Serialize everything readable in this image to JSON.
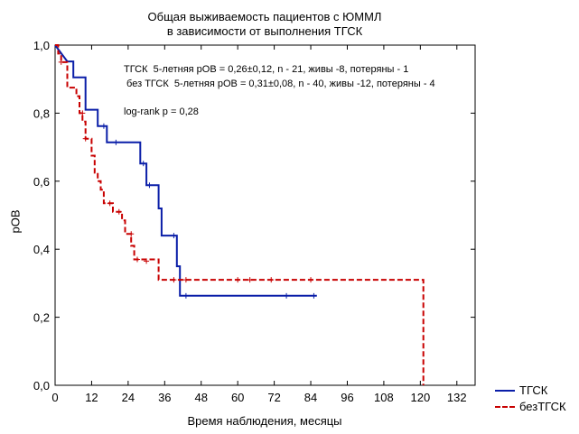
{
  "chart_data": {
    "type": "line",
    "title": "Общая выживаемость пациентов с ЮММЛ",
    "subtitle": "в зависимости от выполнения ТГСК",
    "xlabel": "Время наблюдения, месяцы",
    "ylabel": "pOB",
    "xlim": [
      0,
      138
    ],
    "ylim": [
      0,
      1.0
    ],
    "xticks": [
      0,
      12,
      24,
      36,
      48,
      60,
      72,
      84,
      96,
      108,
      120,
      132
    ],
    "yticks": [
      0,
      0.2,
      0.4,
      0.6,
      0.8,
      1.0
    ],
    "ytick_labels": [
      "0,0",
      "0,2",
      "0,4",
      "0,6",
      "0,8",
      "1,0"
    ],
    "grid": false,
    "legend_position": "bottom-right",
    "annotations": [
      "ТГСК  5-летняя pOB = 0,26±0,12, n - 21, живы -8, потеряны - 1",
      " без ТГСК  5-летняя pOB = 0,31±0,08, n - 40, живы -12, потеряны - 4",
      "log-rank p = 0,28"
    ],
    "series": [
      {
        "name": "ТГСК",
        "color": "#0a1ea8",
        "style": "solid",
        "steps": [
          [
            0,
            1.0
          ],
          [
            4,
            0.952
          ],
          [
            6,
            0.952
          ],
          [
            6,
            0.905
          ],
          [
            10,
            0.905
          ],
          [
            10,
            0.81
          ],
          [
            14,
            0.81
          ],
          [
            14,
            0.762
          ],
          [
            17,
            0.762
          ],
          [
            17,
            0.714
          ],
          [
            28,
            0.714
          ],
          [
            28,
            0.652
          ],
          [
            30,
            0.652
          ],
          [
            30,
            0.588
          ],
          [
            34,
            0.588
          ],
          [
            34,
            0.52
          ],
          [
            35,
            0.52
          ],
          [
            35,
            0.44
          ],
          [
            40,
            0.44
          ],
          [
            40,
            0.35
          ],
          [
            41,
            0.35
          ],
          [
            41,
            0.263
          ],
          [
            86,
            0.263
          ]
        ],
        "censored": [
          [
            16,
            0.762
          ],
          [
            20,
            0.714
          ],
          [
            29,
            0.652
          ],
          [
            31,
            0.588
          ],
          [
            39,
            0.44
          ],
          [
            43,
            0.263
          ],
          [
            76,
            0.263
          ],
          [
            85,
            0.263
          ]
        ]
      },
      {
        "name": "безТГСК",
        "color": "#c80000",
        "style": "dashed",
        "steps": [
          [
            0,
            1.0
          ],
          [
            1,
            1.0
          ],
          [
            1,
            0.975
          ],
          [
            2,
            0.975
          ],
          [
            2,
            0.95
          ],
          [
            4,
            0.95
          ],
          [
            4,
            0.875
          ],
          [
            7,
            0.875
          ],
          [
            7,
            0.85
          ],
          [
            8,
            0.85
          ],
          [
            8,
            0.8
          ],
          [
            9,
            0.8
          ],
          [
            9,
            0.775
          ],
          [
            10,
            0.775
          ],
          [
            10,
            0.725
          ],
          [
            12,
            0.725
          ],
          [
            12,
            0.675
          ],
          [
            13,
            0.675
          ],
          [
            13,
            0.625
          ],
          [
            14,
            0.625
          ],
          [
            14,
            0.6
          ],
          [
            15,
            0.6
          ],
          [
            15,
            0.575
          ],
          [
            16,
            0.575
          ],
          [
            16,
            0.535
          ],
          [
            19,
            0.535
          ],
          [
            19,
            0.51
          ],
          [
            22,
            0.51
          ],
          [
            22,
            0.485
          ],
          [
            23,
            0.485
          ],
          [
            23,
            0.445
          ],
          [
            25,
            0.445
          ],
          [
            25,
            0.41
          ],
          [
            26,
            0.41
          ],
          [
            26,
            0.37
          ],
          [
            34,
            0.37
          ],
          [
            34,
            0.31
          ],
          [
            121,
            0.31
          ],
          [
            121,
            0.0
          ]
        ],
        "censored": [
          [
            2,
            0.95
          ],
          [
            9,
            0.8
          ],
          [
            10,
            0.725
          ],
          [
            18,
            0.535
          ],
          [
            21,
            0.51
          ],
          [
            25,
            0.445
          ],
          [
            27,
            0.37
          ],
          [
            30,
            0.365
          ],
          [
            39,
            0.31
          ],
          [
            43,
            0.31
          ],
          [
            60,
            0.31
          ],
          [
            64,
            0.31
          ],
          [
            71,
            0.31
          ],
          [
            84,
            0.31
          ]
        ]
      }
    ]
  }
}
